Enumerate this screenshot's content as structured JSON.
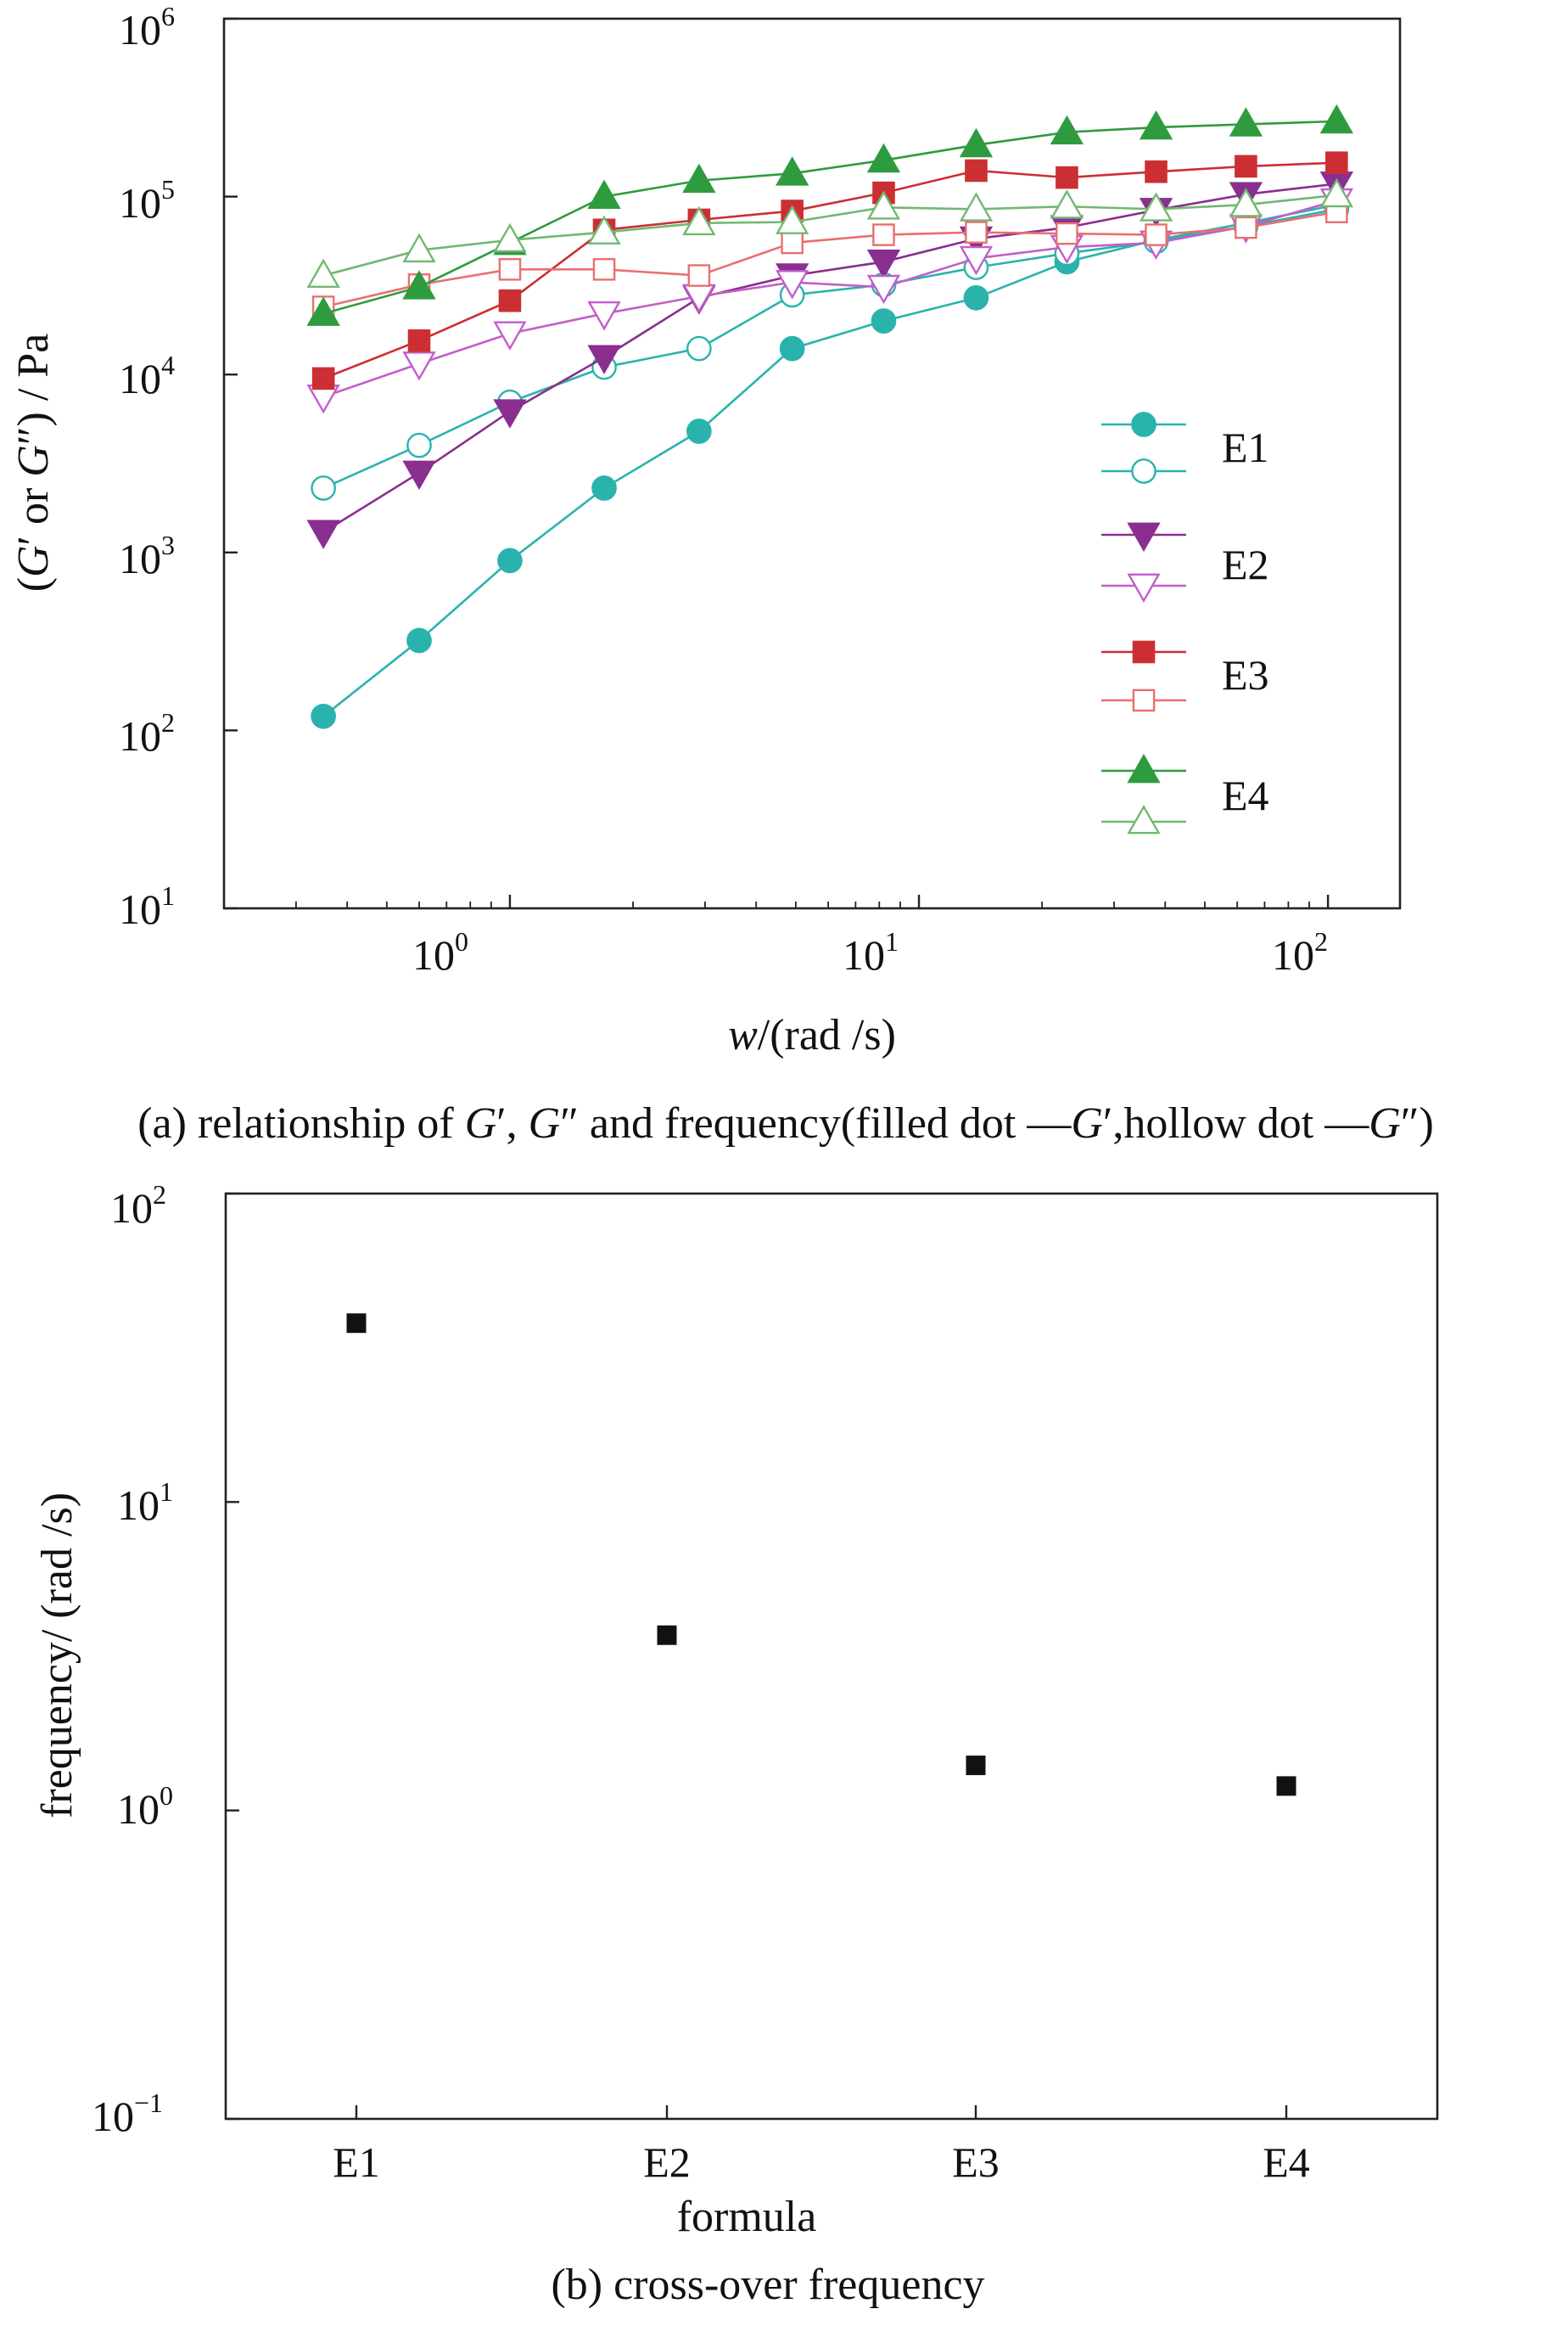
{
  "chart_data": [
    {
      "type": "line",
      "title": "",
      "caption": {
        "prefix": "(a) relationship of ",
        "g1": "G",
        "prime1": "′",
        "sep1": ", ",
        "g2": "G",
        "prime2": "″",
        "mid": "and frequency(filled dot —",
        "g3": "G",
        "prime3": "′",
        "mid2": ",hollow dot —",
        "g4": "G",
        "prime4": "″",
        "suffix": ")"
      },
      "xlabel": {
        "w": "w",
        "rest": "/(rad /s)"
      },
      "ylabel": {
        "open": "(",
        "g1": "G",
        "p1": "′",
        "or": " or ",
        "g2": "G",
        "p2": "″",
        "close": ") / Pa"
      },
      "xscale": "log",
      "yscale": "log",
      "xlim": [
        0.2,
        150
      ],
      "ylim": [
        10,
        1000000
      ],
      "xticks": [
        {
          "value": 1,
          "base": "10",
          "exp": "0"
        },
        {
          "value": 10,
          "base": "10",
          "exp": "1"
        },
        {
          "value": 100,
          "base": "10",
          "exp": "2"
        }
      ],
      "yticks": [
        {
          "value": 10,
          "base": "10",
          "exp": "1"
        },
        {
          "value": 100,
          "base": "10",
          "exp": "2"
        },
        {
          "value": 1000,
          "base": "10",
          "exp": "3"
        },
        {
          "value": 10000,
          "base": "10",
          "exp": "4"
        },
        {
          "value": 100000,
          "base": "10",
          "exp": "5"
        },
        {
          "value": 1000000,
          "base": "10",
          "exp": "6"
        }
      ],
      "legend_position": "right",
      "x": [
        0.35,
        0.6,
        1.0,
        1.7,
        2.9,
        4.9,
        8.2,
        13.8,
        23,
        38,
        63,
        105
      ],
      "series": [
        {
          "name": "E1",
          "legend": "E1",
          "quantity": "G′",
          "filled": true,
          "marker": "circle",
          "color": "#2ab3ad",
          "values": [
            120,
            320,
            900,
            2300,
            4800,
            14000,
            20000,
            27000,
            43000,
            57000,
            71000,
            90000
          ]
        },
        {
          "name": "E1",
          "legend": "",
          "quantity": "G″",
          "filled": false,
          "marker": "circle",
          "color": "#2ab3ad",
          "values": [
            2300,
            4000,
            7000,
            11000,
            14000,
            28000,
            32000,
            40000,
            48000,
            56000,
            68000,
            85000
          ]
        },
        {
          "name": "E2",
          "legend": "E2",
          "quantity": "G′",
          "filled": true,
          "marker": "triangle-down",
          "color": "#8a2e8f",
          "values": [
            1300,
            2800,
            6200,
            12500,
            27000,
            36000,
            43000,
            58000,
            67000,
            84000,
            103000,
            118000
          ]
        },
        {
          "name": "E2",
          "legend": "",
          "quantity": "G″",
          "filled": false,
          "marker": "triangle-down",
          "color": "#c25ec9",
          "values": [
            7500,
            11500,
            17000,
            22000,
            27500,
            33000,
            31000,
            45000,
            52000,
            55000,
            68000,
            95000
          ]
        },
        {
          "name": "E3",
          "legend": "E3",
          "quantity": "G′",
          "filled": true,
          "marker": "square",
          "color": "#cc2f33",
          "values": [
            9500,
            15500,
            26000,
            65000,
            74000,
            83000,
            105000,
            140000,
            128000,
            138000,
            148000,
            155000
          ]
        },
        {
          "name": "E3",
          "legend": "",
          "quantity": "G″",
          "filled": false,
          "marker": "square",
          "color": "#e8706f",
          "values": [
            24000,
            32000,
            39000,
            39000,
            36000,
            55000,
            61000,
            63000,
            62000,
            61000,
            67000,
            82000
          ]
        },
        {
          "name": "E4",
          "legend": "E4",
          "quantity": "G′",
          "filled": true,
          "marker": "triangle-up",
          "color": "#2f9b3f",
          "values": [
            22000,
            31000,
            55000,
            100000,
            123000,
            135000,
            160000,
            195000,
            230000,
            245000,
            255000,
            265000
          ]
        },
        {
          "name": "E4",
          "legend": "",
          "quantity": "G″",
          "filled": false,
          "marker": "triangle-up",
          "color": "#72b872",
          "values": [
            36000,
            50000,
            57000,
            63000,
            71000,
            72000,
            87000,
            85000,
            88000,
            85000,
            90000,
            102000
          ]
        }
      ]
    },
    {
      "type": "scatter",
      "title": "",
      "caption": "(b) cross-over frequency",
      "xlabel": "formula",
      "ylabel": "frequency/ (rad /s)",
      "yscale": "log",
      "ylim": [
        0.1,
        100
      ],
      "categories": [
        "E1",
        "E2",
        "E3",
        "E4"
      ],
      "yticks": [
        {
          "value": 0.1,
          "base": "10",
          "exp": "−1"
        },
        {
          "value": 1,
          "base": "10",
          "exp": "0"
        },
        {
          "value": 10,
          "base": "10",
          "exp": "1"
        },
        {
          "value": 100,
          "base": "10",
          "exp": "2"
        }
      ],
      "marker": "square",
      "color": "#111111",
      "values": [
        38,
        3.7,
        1.4,
        1.2
      ]
    }
  ]
}
